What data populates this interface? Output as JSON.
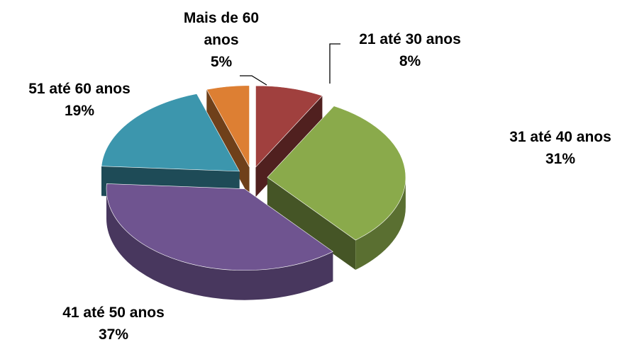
{
  "chart_data": {
    "type": "pie",
    "categories": [
      "21 até 30 anos",
      "31 até 40 anos",
      "41 até 50 anos",
      "51 até 60 anos",
      "Mais de 60 anos"
    ],
    "values": [
      8,
      31,
      37,
      19,
      5
    ],
    "value_labels": [
      "8%",
      "31%",
      "37%",
      "19%",
      "5%"
    ],
    "colors": [
      "#a0403e",
      "#8aaa4b",
      "#6f5490",
      "#3c96ad",
      "#dd7f33"
    ]
  }
}
